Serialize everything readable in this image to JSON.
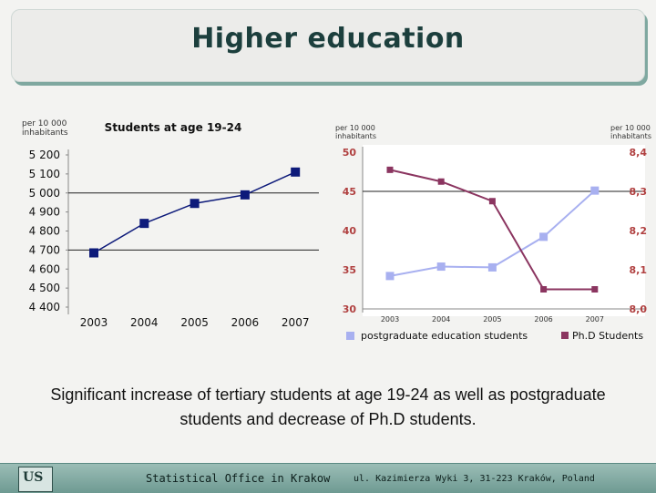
{
  "title": "Higher education",
  "caption": "Significant increase of tertiary students at age 19-24 as well as postgraduate students and decrease of Ph.D students.",
  "footer": {
    "office": "Statistical Office in Krakow",
    "address": "ul. Kazimierza Wyki 3, 31-223 Kraków, Poland",
    "logo": "US"
  },
  "chart_data": [
    {
      "type": "line",
      "title": "Students at age 19-24",
      "ylabel": "per 10 000 inhabitants",
      "x": [
        "2003",
        "2004",
        "2005",
        "2006",
        "2007"
      ],
      "series": [
        {
          "values": [
            4685,
            4840,
            4945,
            4990,
            5110
          ],
          "color": "#0d1a7a"
        }
      ],
      "ylim": [
        4400,
        5200
      ],
      "yticks": [
        "4 400",
        "4 500",
        "4 600",
        "4 700",
        "4 800",
        "4 900",
        "5 000",
        "5 100",
        "5 200"
      ],
      "ytick_values": [
        4400,
        4500,
        4600,
        4700,
        4800,
        4900,
        5000,
        5100,
        5200
      ],
      "grid": "horizontal",
      "legend": "none"
    },
    {
      "type": "line",
      "ylabel_left": "per 10 000 inhabitants",
      "ylabel_right": "per 10 000 inhabitants",
      "x": [
        "2003",
        "2004",
        "2005",
        "2006",
        "2007"
      ],
      "ylim_left": [
        30,
        50
      ],
      "ylim_right": [
        8.0,
        8.4
      ],
      "yticks_left": [
        "30",
        "35",
        "40",
        "45",
        "50"
      ],
      "ytick_values_left": [
        30,
        35,
        40,
        45,
        50
      ],
      "yticks_right": [
        "8,0",
        "8,1",
        "8,2",
        "8,3",
        "8,4"
      ],
      "ytick_values_right": [
        8.0,
        8.1,
        8.2,
        8.3,
        8.4
      ],
      "series": [
        {
          "name": "postgraduate education  students",
          "axis": "left",
          "values": [
            34.2,
            35.4,
            35.3,
            39.2,
            45.1
          ],
          "color": "#a8b0f0"
        },
        {
          "name": "Ph.D Students",
          "axis": "right",
          "values": [
            8.355,
            8.325,
            8.275,
            8.05,
            8.05
          ],
          "color": "#8b3560"
        }
      ],
      "tick_color": "#b04040",
      "grid": "horizontal",
      "legend": "bottom"
    }
  ]
}
